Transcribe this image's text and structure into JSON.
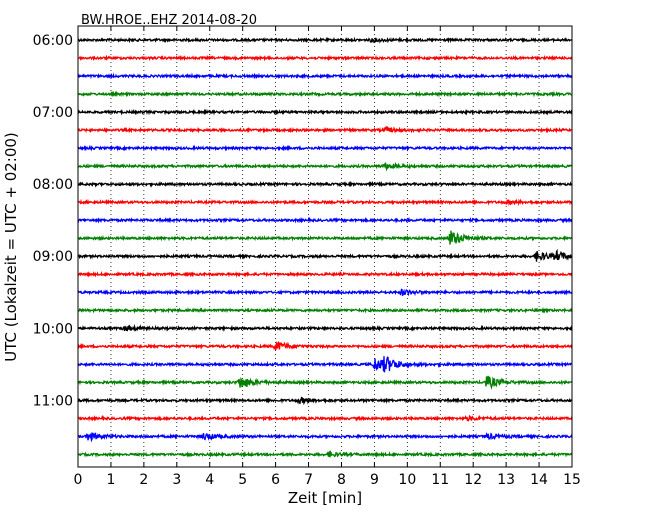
{
  "chart_data": {
    "type": "line",
    "title": "BW.HROE..EHZ 2014-08-20",
    "xlabel": "Zeit  [min]",
    "ylabel": "UTC (Lokalzeit = UTC + 02:00)",
    "xlim": [
      0,
      15
    ],
    "x_ticks": [
      "0",
      "1",
      "2",
      "3",
      "4",
      "5",
      "6",
      "7",
      "8",
      "9",
      "10",
      "11",
      "12",
      "13",
      "14",
      "15"
    ],
    "y_ticks": [
      "06:00",
      "07:00",
      "08:00",
      "09:00",
      "10:00",
      "11:00"
    ],
    "grid": "vertical dotted at each minute",
    "start_time": "06:00",
    "trace_interval_min": 15,
    "trace_colors": [
      "#000000",
      "#ff0000",
      "#0000ff",
      "#008000"
    ],
    "events": [
      {
        "trace": "06:00",
        "minute": 8.9,
        "amplitude": 0.18
      },
      {
        "trace": "07:15",
        "minute": 9.3,
        "amplitude": 0.25
      },
      {
        "trace": "07:45",
        "minute": 9.3,
        "amplitude": 0.32
      },
      {
        "trace": "08:15",
        "minute": 13.0,
        "amplitude": 0.15
      },
      {
        "trace": "08:45",
        "minute": 11.3,
        "amplitude": 0.9
      },
      {
        "trace": "09:00",
        "minute": 13.9,
        "amplitude": 0.55
      },
      {
        "trace": "09:00",
        "minute": 14.5,
        "amplitude": 0.45
      },
      {
        "trace": "09:30",
        "minute": 9.8,
        "amplitude": 0.3
      },
      {
        "trace": "10:00",
        "minute": 1.4,
        "amplitude": 0.25
      },
      {
        "trace": "10:15",
        "minute": 6.0,
        "amplitude": 0.55
      },
      {
        "trace": "10:30",
        "minute": 9.0,
        "amplitude": 0.75
      },
      {
        "trace": "10:30",
        "minute": 9.3,
        "amplitude": 0.7
      },
      {
        "trace": "10:45",
        "minute": 4.9,
        "amplitude": 0.7
      },
      {
        "trace": "10:45",
        "minute": 12.4,
        "amplitude": 0.7
      },
      {
        "trace": "11:00",
        "minute": 6.7,
        "amplitude": 0.3
      },
      {
        "trace": "11:15",
        "minute": 11.8,
        "amplitude": 0.2
      },
      {
        "trace": "11:30",
        "minute": 0.3,
        "amplitude": 0.45
      },
      {
        "trace": "11:30",
        "minute": 3.8,
        "amplitude": 0.35
      },
      {
        "trace": "11:30",
        "minute": 12.4,
        "amplitude": 0.3
      },
      {
        "trace": "11:45",
        "minute": 7.6,
        "amplitude": 0.25
      }
    ]
  }
}
